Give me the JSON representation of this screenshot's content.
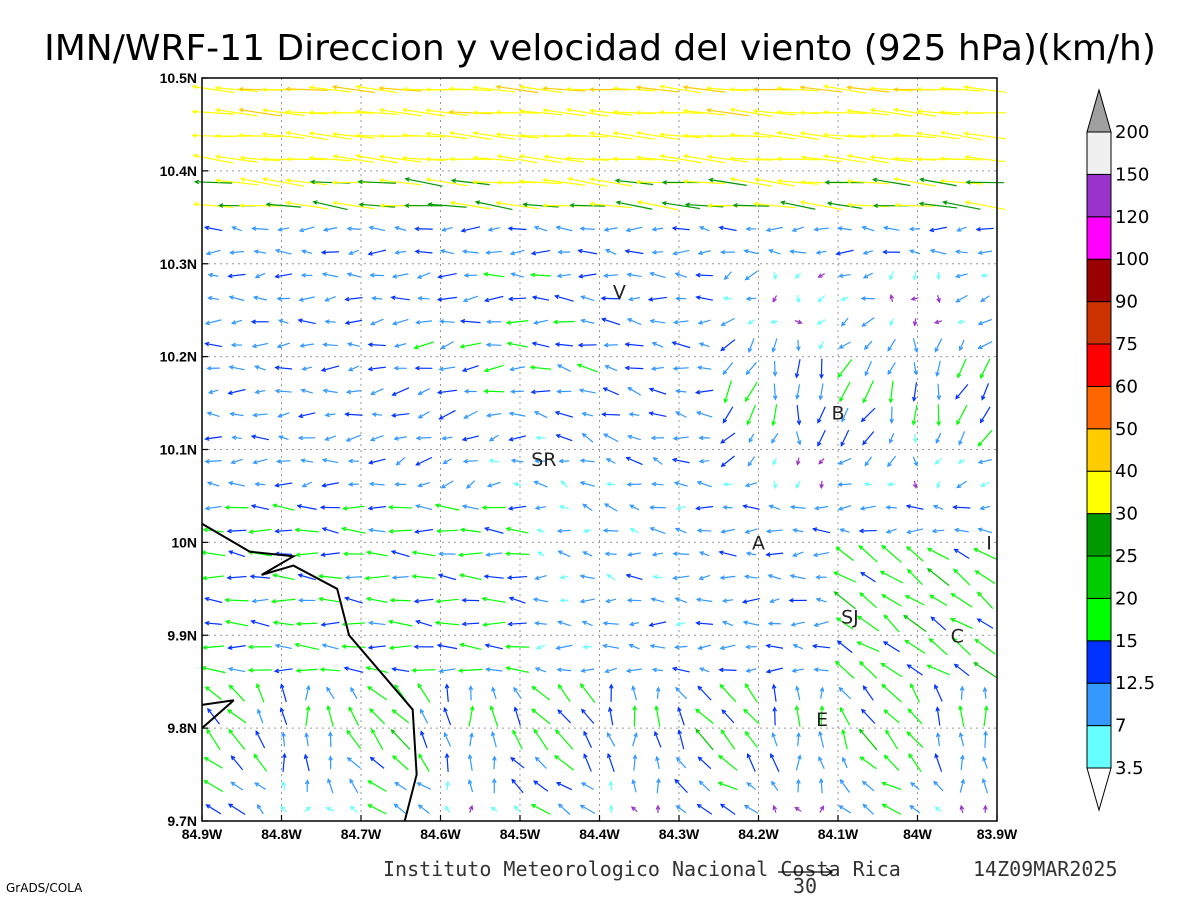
{
  "chart_data": {
    "type": "vector_field",
    "title": "IMN/WRF-11 Direccion y velocidad del viento (925 hPa)(km/h)",
    "lon_ticks": [
      "84.9W",
      "84.8W",
      "84.7W",
      "84.6W",
      "84.5W",
      "84.4W",
      "84.3W",
      "84.2W",
      "84.1W",
      "84W",
      "83.9W"
    ],
    "lat_ticks": [
      "9.7N",
      "9.8N",
      "9.9N",
      "10N",
      "10.1N",
      "10.2N",
      "10.3N",
      "10.4N",
      "10.5N"
    ],
    "lon_range": [
      -84.9,
      -83.9
    ],
    "lat_range": [
      9.7,
      10.5
    ],
    "grid": "dotted",
    "color_scale": {
      "labels": [
        "3.5",
        "7",
        "12.5",
        "15",
        "20",
        "25",
        "30",
        "40",
        "50",
        "60",
        "75",
        "90",
        "100",
        "120",
        "150",
        "200"
      ],
      "colors": [
        "#66ffff",
        "#3399ff",
        "#0033ff",
        "#00ff00",
        "#00cc00",
        "#009900",
        "#ffff00",
        "#ffcc00",
        "#ff6600",
        "#ff0000",
        "#cc3300",
        "#990000",
        "#ff00ff",
        "#9933cc",
        "#f0f0f0",
        "#a0a0a0"
      ]
    },
    "reference_vector": {
      "label": "30",
      "value": 30
    },
    "locations": [
      {
        "label": "V",
        "lon": -84.375,
        "lat": 10.27
      },
      {
        "label": "SR",
        "lon": -84.47,
        "lat": 10.09
      },
      {
        "label": "B",
        "lon": -84.1,
        "lat": 10.14
      },
      {
        "label": "A",
        "lon": -84.2,
        "lat": 10.0
      },
      {
        "label": "I",
        "lon": -83.91,
        "lat": 10.0
      },
      {
        "label": "SJ",
        "lon": -84.085,
        "lat": 9.92
      },
      {
        "label": "C",
        "lon": -83.95,
        "lat": 9.9
      },
      {
        "label": "E",
        "lon": -84.12,
        "lat": 9.81
      }
    ],
    "coastline": [
      [
        -84.9,
        10.02
      ],
      [
        -84.84,
        9.99
      ],
      [
        -84.785,
        9.985
      ],
      [
        -84.825,
        9.965
      ],
      [
        -84.785,
        9.975
      ],
      [
        -84.73,
        9.95
      ],
      [
        -84.715,
        9.9
      ],
      [
        -84.67,
        9.855
      ],
      [
        -84.635,
        9.82
      ],
      [
        -84.63,
        9.75
      ],
      [
        -84.645,
        9.7
      ]
    ],
    "coastline2": [
      [
        -84.9,
        9.825
      ],
      [
        -84.86,
        9.83
      ]
    ],
    "coastline3": [
      [
        -84.9,
        9.8
      ],
      [
        -84.86,
        9.83
      ]
    ]
  },
  "footer": {
    "source": "Instituto Meteorologico Nacional Costa Rica",
    "date": "14Z09MAR2025",
    "credit": "GrADS/COLA"
  }
}
